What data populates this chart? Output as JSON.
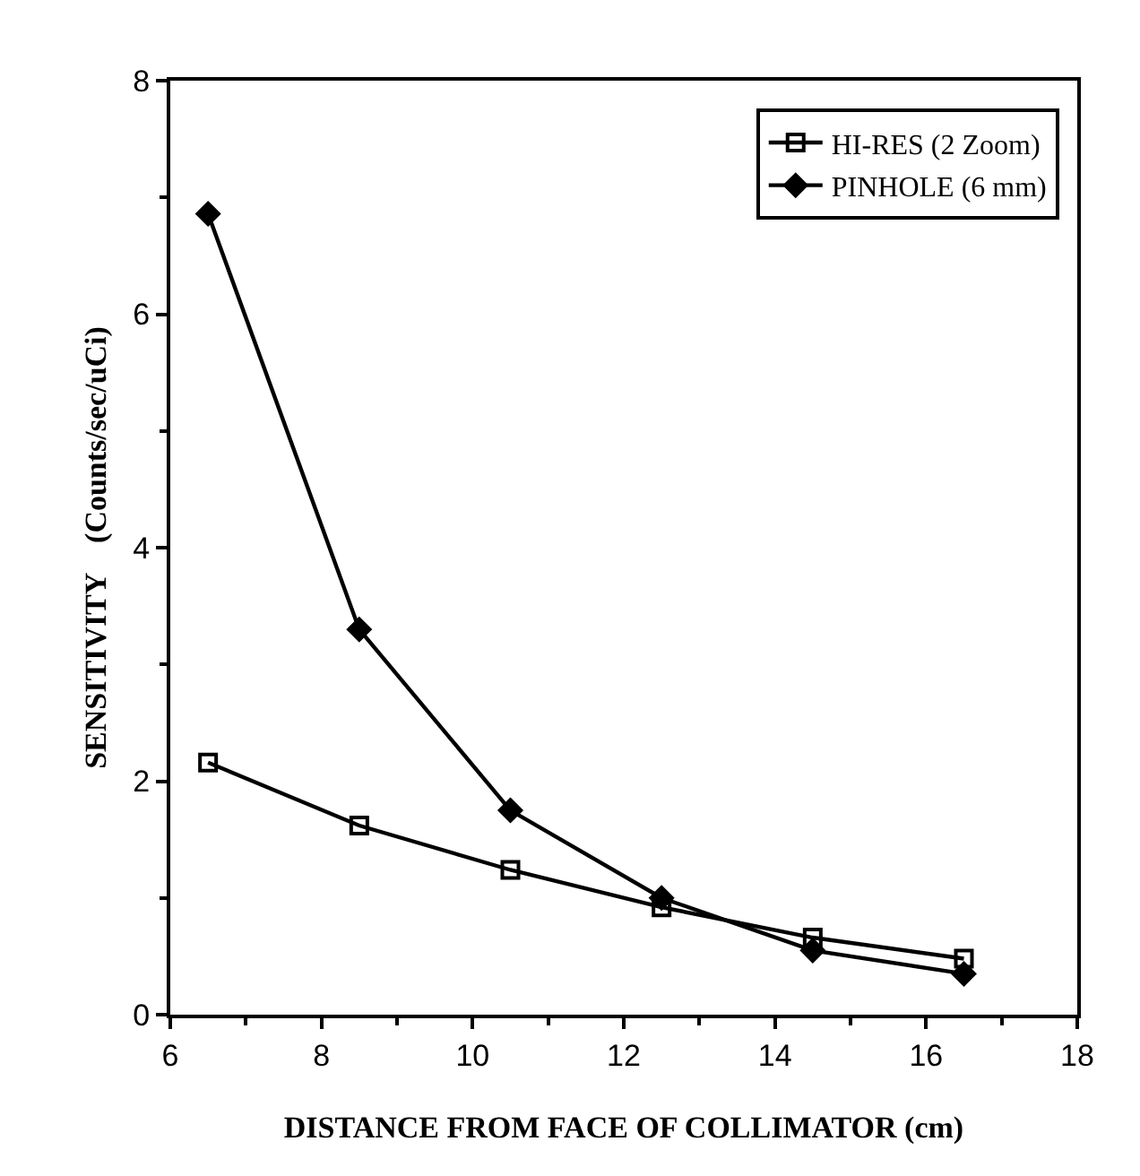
{
  "chart_data": {
    "type": "line",
    "xlabel": "DISTANCE FROM FACE OF COLLIMATOR (cm)",
    "ylabel": "SENSITIVITY    (Counts/sec/uCi)",
    "x": [
      6.5,
      8.5,
      10.5,
      12.5,
      14.5,
      16.5
    ],
    "series": [
      {
        "name": "HI-RES (2 Zoom)",
        "color": "#000000",
        "marker": "square",
        "values": [
          2.16,
          1.62,
          1.24,
          0.92,
          0.66,
          0.48
        ]
      },
      {
        "name": "PINHOLE (6 mm)",
        "color": "#000000",
        "marker": "diamond",
        "values": [
          6.86,
          3.3,
          1.75,
          1.0,
          0.55,
          0.35
        ]
      }
    ],
    "xlim": [
      6,
      18
    ],
    "xticks": [
      6,
      8,
      10,
      12,
      14,
      16,
      18
    ],
    "ylim": [
      0,
      8
    ],
    "yticks": [
      0,
      2,
      4,
      6,
      8
    ],
    "legend": "top right",
    "line_style": "solid"
  }
}
